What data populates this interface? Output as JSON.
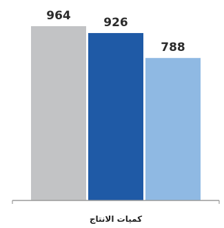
{
  "chart_data": {
    "type": "bar",
    "categories": [
      "كميات الانتاج"
    ],
    "series": [
      {
        "values": [
          964
        ],
        "color": "#c2c3c5"
      },
      {
        "values": [
          926
        ],
        "color": "#1f5aa6"
      },
      {
        "values": [
          788
        ],
        "color": "#8fb9e3"
      }
    ],
    "data_labels": [
      "964",
      "926",
      "788"
    ],
    "title": "",
    "xlabel": "",
    "ylabel": "",
    "ylim": [
      0,
      964
    ],
    "grid": false,
    "legend": "none"
  },
  "colors": {
    "axis": "#9a9a9a",
    "label_text": "#2b2b2b"
  }
}
